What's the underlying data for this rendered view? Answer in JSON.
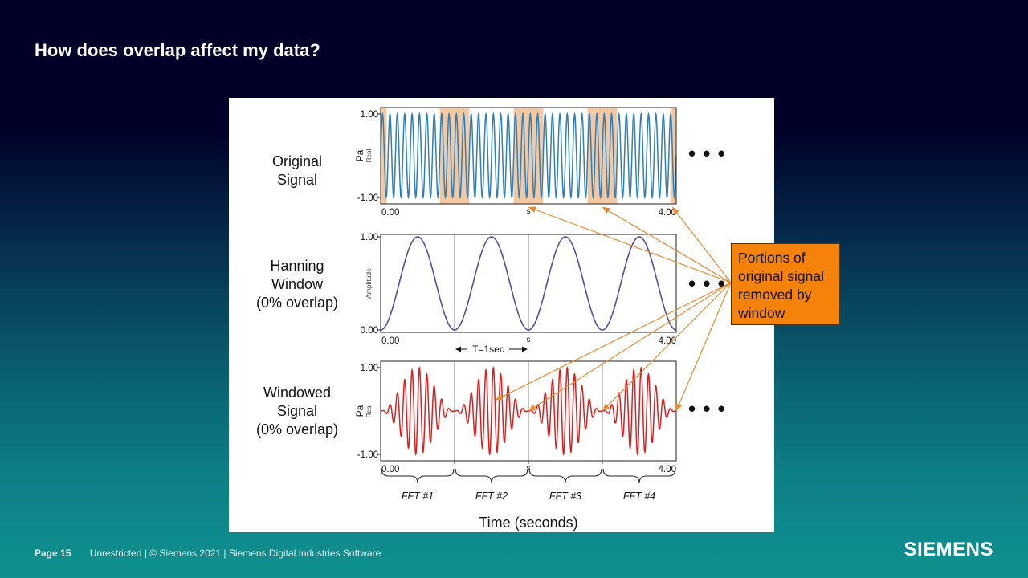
{
  "slide": {
    "title": "How does overlap affect my data?",
    "page_label": "Page 15",
    "footer_text": "Unrestricted | © Siemens 2021 | Siemens Digital Industries Software",
    "logo_text": "SIEMENS",
    "ellipsis": "• • •"
  },
  "rows": [
    {
      "lines": [
        "Original",
        "Signal"
      ]
    },
    {
      "lines": [
        "Hanning",
        "Window",
        "(0% overlap)"
      ]
    },
    {
      "lines": [
        "Windowed",
        "Signal",
        "(0% overlap)"
      ]
    }
  ],
  "callout": {
    "lines": [
      "Portions of",
      "original signal",
      "removed by",
      "window"
    ]
  },
  "annotations": {
    "period_label": "T=1sec",
    "time_axis_label": "Time (seconds)",
    "fft_labels": [
      "FFT #1",
      "FFT #2",
      "FFT #3",
      "FFT #4"
    ]
  },
  "colors": {
    "original_signal": "#2f7fb8",
    "window": "#5a4a9a",
    "windowed_signal": "#dd1e1e",
    "removed_highlight": "#f3c9a4",
    "arrow": "#e88a30",
    "callout_fill": "#f5820b"
  },
  "chart_data": [
    {
      "type": "line",
      "ylabel": "Pa",
      "ysublabel": "Real",
      "yticks": [
        "1.00",
        "-1.00"
      ],
      "xticks": [
        "0.00",
        "s",
        "4.00"
      ],
      "xlim": [
        0,
        4
      ],
      "ylim": [
        -1,
        1
      ],
      "signal": {
        "kind": "sine",
        "amplitude": 1,
        "frequency_hz": 10
      },
      "removed_regions": [
        [
          0,
          0.08
        ],
        [
          0.8,
          1.2
        ],
        [
          1.8,
          2.2
        ],
        [
          2.8,
          3.2
        ],
        [
          3.92,
          4
        ]
      ]
    },
    {
      "type": "line",
      "ylabel": "Amplitude",
      "yticks": [
        "1.00",
        "0.00"
      ],
      "xticks": [
        "0.00",
        "s",
        "4.00"
      ],
      "xlim": [
        0,
        4
      ],
      "ylim": [
        0,
        1
      ],
      "window": {
        "kind": "hanning",
        "period_s": 1,
        "overlap_percent": 0
      }
    },
    {
      "type": "line",
      "ylabel": "Pa",
      "ysublabel": "Real",
      "yticks": [
        "1.00",
        "-1.00"
      ],
      "xticks": [
        "0.00",
        "s",
        "4.00"
      ],
      "xlim": [
        0,
        4
      ],
      "ylim": [
        -1,
        1
      ],
      "signal": {
        "kind": "windowed sine",
        "amplitude": 1,
        "frequency_hz": 10,
        "window_period_s": 1
      }
    }
  ]
}
